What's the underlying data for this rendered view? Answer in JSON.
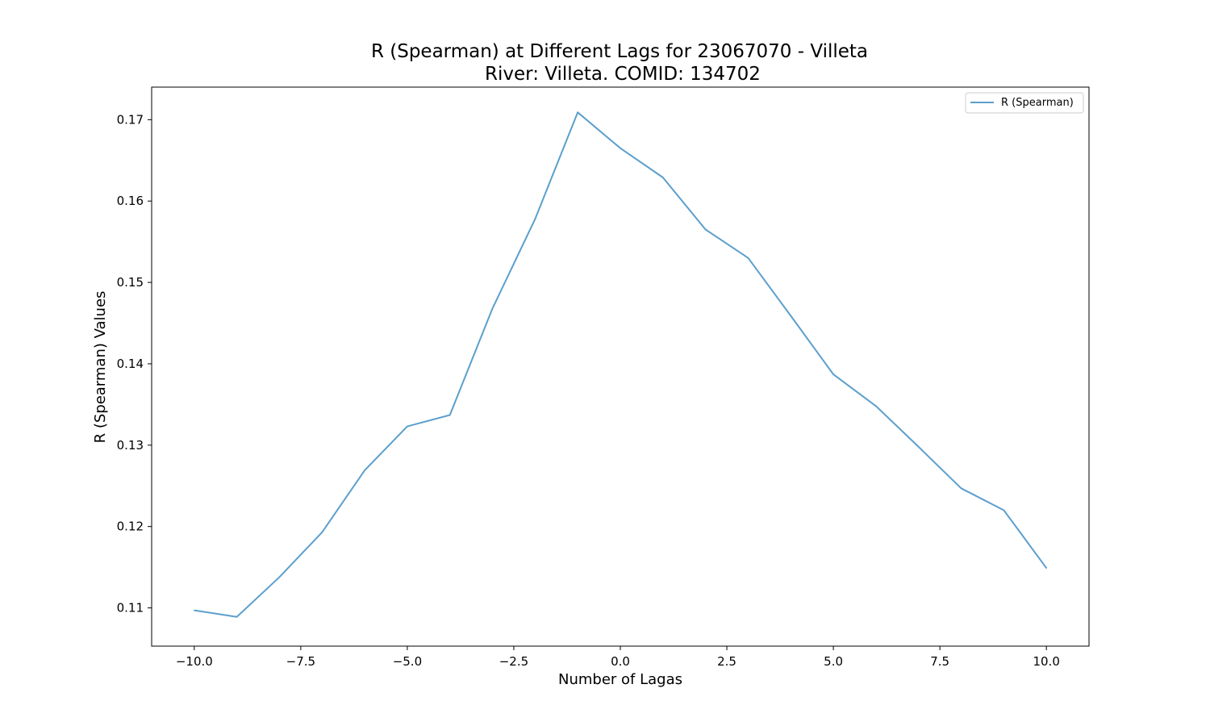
{
  "chart_data": {
    "type": "line",
    "title": "R (Spearman) at Different Lags for 23067070 - Villeta",
    "subtitle": "River: Villeta. COMID: 134702",
    "xlabel": "Number of Lagas",
    "ylabel": "R (Spearman) Values",
    "xlim": [
      -11,
      11
    ],
    "ylim": [
      0.1053,
      0.174
    ],
    "x_ticks": [
      -10.0,
      -7.5,
      -5.0,
      -2.5,
      0.0,
      2.5,
      5.0,
      7.5,
      10.0
    ],
    "x_tick_labels": [
      "−10.0",
      "−7.5",
      "−5.0",
      "−2.5",
      "0.0",
      "2.5",
      "5.0",
      "7.5",
      "10.0"
    ],
    "y_ticks": [
      0.11,
      0.12,
      0.13,
      0.14,
      0.15,
      0.16,
      0.17
    ],
    "y_tick_labels": [
      "0.11",
      "0.12",
      "0.13",
      "0.14",
      "0.15",
      "0.16",
      "0.17"
    ],
    "grid": false,
    "legend_position": "top-right",
    "series": [
      {
        "name": "R (Spearman)",
        "color": "#5b9fcd",
        "x": [
          -10,
          -9,
          -8,
          -7,
          -6,
          -5,
          -4,
          -3,
          -2,
          -1,
          0,
          1,
          2,
          3,
          4,
          5,
          6,
          7,
          8,
          9,
          10
        ],
        "values": [
          0.1097,
          0.1089,
          0.1138,
          0.1193,
          0.1269,
          0.1323,
          0.1337,
          0.1468,
          0.1578,
          0.1709,
          0.1665,
          0.1629,
          0.1565,
          0.153,
          0.1459,
          0.1387,
          0.1348,
          0.1298,
          0.1247,
          0.122,
          0.1149
        ]
      }
    ]
  }
}
